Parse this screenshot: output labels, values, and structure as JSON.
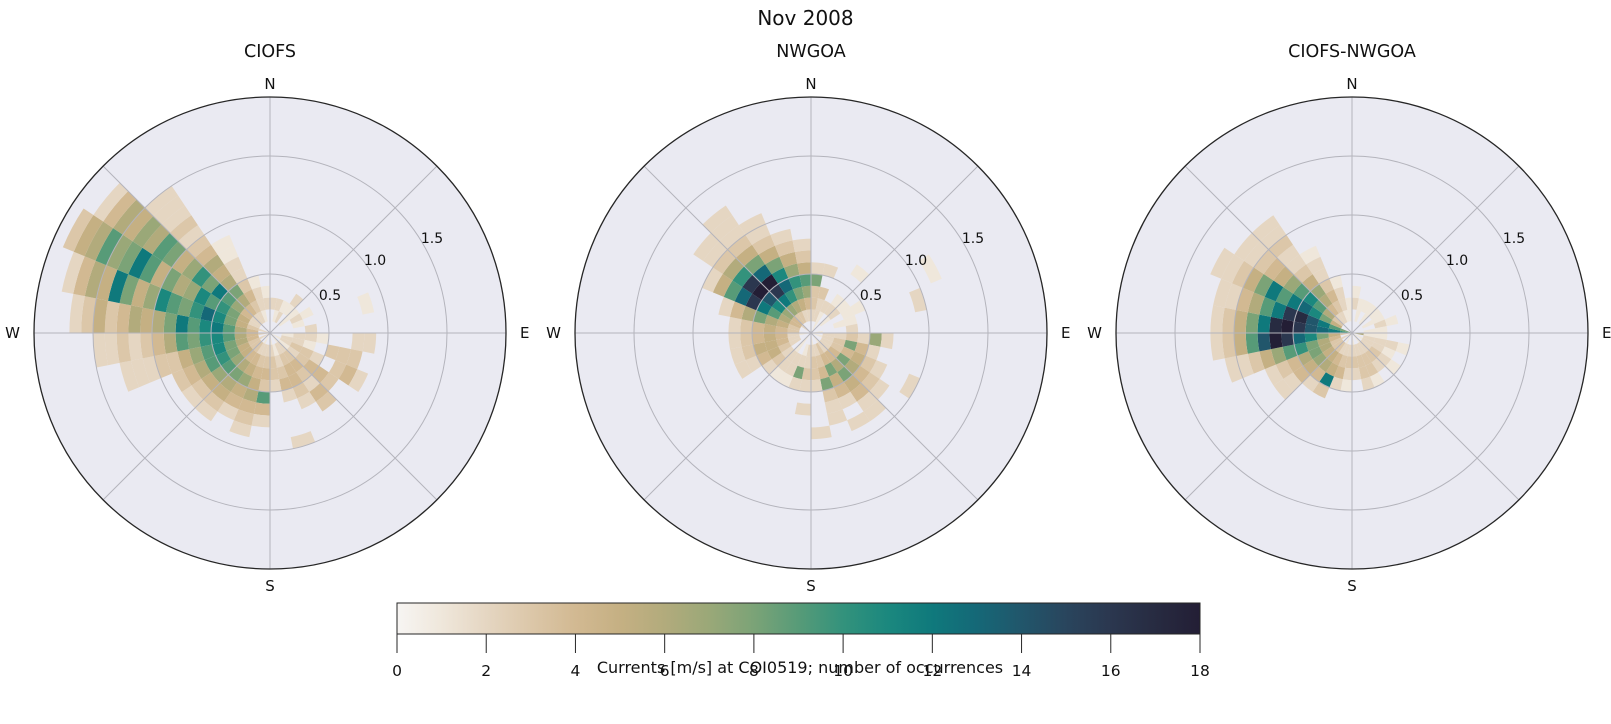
{
  "figure": {
    "title": "Nov 2008"
  },
  "compass_labels": {
    "n": "N",
    "e": "E",
    "s": "S",
    "w": "W"
  },
  "radial_tick_labels": [
    "0.5",
    "1.0",
    "1.5"
  ],
  "colorbar": {
    "label": "Currents [m/s] at COI0519; number of occurrences",
    "min": 0,
    "max": 18,
    "ticks": [
      0,
      2,
      4,
      6,
      8,
      10,
      12,
      14,
      16,
      18
    ],
    "palette": [
      "#f7f5f3",
      "#efe7db",
      "#e5d6c2",
      "#dcc7a9",
      "#d2b992",
      "#c5b083",
      "#b2ab7c",
      "#9aa878",
      "#7ba377",
      "#579b78",
      "#33927c",
      "#1b887e",
      "#0f797c",
      "#156877",
      "#21566b",
      "#29455d",
      "#2b374f",
      "#272b41",
      "#231e35"
    ]
  },
  "style": {
    "axes_background": "#eaeaf2",
    "grid_color": "#b4b4bc",
    "outer_circle_color": "#262626",
    "text_color": "#111111"
  },
  "chart_data": [
    {
      "type": "heatmap",
      "title": "CIOFS",
      "projection": "polar",
      "angle_start": "N",
      "angle_direction": "clockwise",
      "angle_bin_deg": 11.25,
      "r_bin": 0.1,
      "r_max": 2.0,
      "r_ticks": [
        0.5,
        1.0,
        1.5
      ],
      "value_label": "number of occurrences",
      "cells_format": "[angle_bin_index_from_N_clockwise, start_radius_bin, [values per 0.1 radius bin]]",
      "cells": [
        [
          0,
          2,
          [
            2
          ]
        ],
        [
          1,
          1,
          [
            1,
            2
          ]
        ],
        [
          2,
          1,
          [
            2,
            1
          ]
        ],
        [
          3,
          2,
          [
            1,
            2
          ]
        ],
        [
          4,
          1,
          [
            1,
            1
          ]
        ],
        [
          5,
          2,
          [
            2,
            1
          ]
        ],
        [
          6,
          2,
          [
            1
          ]
        ],
        [
          6,
          8,
          [
            1
          ]
        ],
        [
          7,
          3,
          [
            2
          ]
        ],
        [
          8,
          1,
          [
            1,
            2,
            2,
            1
          ]
        ],
        [
          8,
          7,
          [
            2,
            2
          ]
        ],
        [
          9,
          1,
          [
            2,
            2,
            1
          ]
        ],
        [
          9,
          5,
          [
            3,
            3,
            3
          ]
        ],
        [
          10,
          0,
          [
            1,
            2,
            3,
            3,
            2
          ]
        ],
        [
          10,
          6,
          [
            3,
            4,
            2
          ]
        ],
        [
          11,
          1,
          [
            1,
            2,
            3,
            4,
            4,
            3
          ]
        ],
        [
          12,
          0,
          [
            1,
            2,
            3,
            4,
            3,
            2,
            4,
            3
          ]
        ],
        [
          13,
          1,
          [
            2,
            3,
            4,
            4,
            3,
            2
          ]
        ],
        [
          14,
          1,
          [
            1,
            2,
            3,
            4,
            2
          ]
        ],
        [
          14,
          9,
          [
            2
          ]
        ],
        [
          15,
          0,
          [
            1,
            2,
            3,
            3,
            2
          ]
        ],
        [
          16,
          1,
          [
            2,
            3,
            4,
            3,
            9,
            4,
            2
          ]
        ],
        [
          17,
          1,
          [
            2,
            3,
            4,
            5,
            6,
            4,
            3,
            2
          ]
        ],
        [
          18,
          0,
          [
            1,
            2,
            4,
            5,
            7,
            5,
            4,
            2
          ]
        ],
        [
          19,
          1,
          [
            3,
            4,
            6,
            8,
            6,
            5,
            3,
            2
          ]
        ],
        [
          20,
          1,
          [
            3,
            5,
            7,
            9,
            7,
            5,
            3,
            2
          ]
        ],
        [
          21,
          0,
          [
            2,
            3,
            5,
            8,
            10,
            9,
            6,
            4,
            3
          ]
        ],
        [
          22,
          1,
          [
            4,
            6,
            8,
            11,
            9,
            7,
            5,
            3,
            3,
            2,
            2,
            2
          ]
        ],
        [
          23,
          0,
          [
            2,
            4,
            6,
            9,
            11,
            10,
            8,
            9,
            6,
            4,
            3,
            2,
            3,
            2,
            2
          ]
        ],
        [
          24,
          1,
          [
            4,
            6,
            9,
            12,
            11,
            9,
            12,
            8,
            6,
            5,
            6,
            4,
            3,
            5,
            3,
            2
          ]
        ],
        [
          25,
          0,
          [
            2,
            3,
            5,
            8,
            11,
            13,
            10,
            8,
            9,
            11,
            7,
            5,
            8,
            12,
            5,
            6,
            4,
            2
          ]
        ],
        [
          26,
          1,
          [
            2,
            5,
            8,
            10,
            9,
            11,
            7,
            6,
            8,
            5,
            9,
            12,
            8,
            7,
            9,
            6,
            5,
            3
          ]
        ],
        [
          27,
          1,
          [
            2,
            4,
            7,
            9,
            12,
            8,
            10,
            7,
            5,
            8,
            9,
            6,
            7,
            5,
            6,
            4,
            2
          ]
        ],
        [
          28,
          1,
          [
            2,
            4,
            6,
            8,
            6,
            5,
            6,
            4,
            3,
            2,
            3,
            2,
            2,
            2
          ]
        ],
        [
          29,
          1,
          [
            2,
            3,
            4,
            3,
            2,
            2,
            1,
            1
          ]
        ],
        [
          30,
          1,
          [
            1,
            2,
            2,
            1
          ]
        ],
        [
          31,
          2,
          [
            2,
            1
          ]
        ]
      ]
    },
    {
      "type": "heatmap",
      "title": "NWGOA",
      "projection": "polar",
      "angle_start": "N",
      "angle_direction": "clockwise",
      "angle_bin_deg": 11.25,
      "r_bin": 0.1,
      "r_max": 2.0,
      "r_ticks": [
        0.5,
        1.0,
        1.5
      ],
      "value_label": "number of occurrences",
      "cells_format": "[angle_bin_index_from_N_clockwise, start_radius_bin, [values per 0.1 radius bin]]",
      "cells": [
        [
          0,
          1,
          [
            2,
            3,
            3,
            8,
            2
          ]
        ],
        [
          1,
          1,
          [
            2,
            2,
            3
          ]
        ],
        [
          1,
          5,
          [
            2
          ]
        ],
        [
          2,
          0,
          [
            1,
            1,
            2
          ]
        ],
        [
          3,
          2,
          [
            2,
            1
          ]
        ],
        [
          3,
          6,
          [
            1
          ]
        ],
        [
          4,
          1,
          [
            1,
            2,
            1
          ]
        ],
        [
          5,
          3,
          [
            1,
            1
          ]
        ],
        [
          5,
          11,
          [
            1
          ]
        ],
        [
          6,
          2,
          [
            1,
            1
          ]
        ],
        [
          6,
          9,
          [
            2
          ]
        ],
        [
          7,
          0,
          [
            1
          ]
        ],
        [
          7,
          3,
          [
            2
          ]
        ],
        [
          8,
          1,
          [
            2,
            2,
            3,
            2,
            7,
            2
          ]
        ],
        [
          9,
          0,
          [
            1,
            2,
            3,
            8,
            4,
            2
          ]
        ],
        [
          10,
          1,
          [
            2,
            3,
            4,
            5,
            3,
            2
          ]
        ],
        [
          10,
          9,
          [
            2
          ]
        ],
        [
          11,
          1,
          [
            2,
            4,
            8,
            6,
            4,
            3,
            2
          ]
        ],
        [
          12,
          0,
          [
            1,
            2,
            4,
            6,
            8,
            5,
            4,
            2,
            2
          ]
        ],
        [
          13,
          1,
          [
            3,
            4,
            8,
            5,
            4,
            2
          ]
        ],
        [
          13,
          8,
          [
            2
          ]
        ],
        [
          14,
          1,
          [
            2,
            3,
            4,
            8,
            3,
            2,
            2
          ]
        ],
        [
          15,
          0,
          [
            1,
            2,
            3,
            3,
            2
          ]
        ],
        [
          15,
          8,
          [
            2
          ]
        ],
        [
          16,
          1,
          [
            2,
            2,
            3,
            2
          ]
        ],
        [
          16,
          6,
          [
            2
          ]
        ],
        [
          17,
          1,
          [
            1,
            2,
            8,
            2
          ]
        ],
        [
          18,
          2,
          [
            2,
            2,
            1
          ]
        ],
        [
          19,
          0,
          [
            1,
            1,
            2,
            2,
            1
          ]
        ],
        [
          20,
          2,
          [
            2,
            3,
            2
          ]
        ],
        [
          21,
          1,
          [
            2,
            3,
            5,
            4,
            2,
            2
          ]
        ],
        [
          22,
          1,
          [
            2,
            4,
            5,
            5,
            3,
            2
          ]
        ],
        [
          23,
          0,
          [
            1,
            2,
            4,
            5,
            4,
            3,
            2
          ]
        ],
        [
          24,
          1,
          [
            3,
            4,
            5,
            4,
            3,
            2
          ]
        ],
        [
          25,
          1,
          [
            3,
            5,
            6,
            8,
            6,
            4,
            2
          ]
        ],
        [
          26,
          1,
          [
            4,
            6,
            9,
            12,
            16,
            13,
            9,
            5,
            2
          ]
        ],
        [
          27,
          0,
          [
            2,
            4,
            7,
            11,
            14,
            18,
            16,
            10,
            6,
            3,
            2,
            2
          ]
        ],
        [
          28,
          1,
          [
            3,
            7,
            12,
            16,
            18,
            13,
            8,
            5,
            3,
            2,
            2,
            2
          ]
        ],
        [
          29,
          1,
          [
            3,
            6,
            10,
            13,
            11,
            8,
            5,
            3,
            2,
            2
          ]
        ],
        [
          30,
          1,
          [
            2,
            5,
            8,
            10,
            7,
            5,
            3,
            2
          ]
        ],
        [
          31,
          1,
          [
            2,
            4,
            7,
            9,
            5,
            3,
            2
          ]
        ]
      ]
    },
    {
      "type": "heatmap",
      "title": "CIOFS-NWGOA",
      "projection": "polar",
      "angle_start": "N",
      "angle_direction": "clockwise",
      "angle_bin_deg": 11.25,
      "r_bin": 0.1,
      "r_max": 2.0,
      "r_ticks": [
        0.5,
        1.0,
        1.5
      ],
      "value_label": "number of occurrences",
      "cells_format": "[angle_bin_index_from_N_clockwise, start_radius_bin, [values per 0.1 radius bin]]",
      "cells": [
        [
          0,
          2,
          [
            2,
            1
          ]
        ],
        [
          1,
          1,
          [
            1,
            1
          ]
        ],
        [
          2,
          2,
          [
            1
          ]
        ],
        [
          3,
          1,
          [
            1,
            1
          ]
        ],
        [
          4,
          2,
          [
            1
          ]
        ],
        [
          5,
          1,
          [
            1,
            1
          ]
        ],
        [
          6,
          2,
          [
            2,
            1
          ]
        ],
        [
          7,
          1,
          [
            1,
            1
          ]
        ],
        [
          8,
          0,
          [
            6,
            1,
            1
          ]
        ],
        [
          9,
          1,
          [
            2,
            2,
            2,
            1
          ]
        ],
        [
          10,
          0,
          [
            1,
            2,
            2,
            1
          ]
        ],
        [
          11,
          1,
          [
            2,
            3,
            2,
            1
          ]
        ],
        [
          12,
          0,
          [
            1,
            2,
            3,
            2
          ]
        ],
        [
          13,
          1,
          [
            2,
            3,
            3,
            1
          ]
        ],
        [
          14,
          1,
          [
            2,
            3,
            3,
            2
          ]
        ],
        [
          15,
          0,
          [
            1,
            2,
            3,
            2
          ]
        ],
        [
          16,
          1,
          [
            2,
            3,
            2,
            1
          ]
        ],
        [
          17,
          1,
          [
            2,
            3,
            4,
            2
          ]
        ],
        [
          18,
          0,
          [
            1,
            2,
            4,
            5,
            12,
            3
          ]
        ],
        [
          19,
          1,
          [
            3,
            5,
            6,
            4,
            2
          ]
        ],
        [
          20,
          1,
          [
            3,
            5,
            7,
            5,
            4,
            2,
            2
          ]
        ],
        [
          21,
          0,
          [
            2,
            3,
            6,
            8,
            6,
            4,
            3,
            2
          ]
        ],
        [
          22,
          1,
          [
            4,
            6,
            8,
            10,
            9,
            7,
            5,
            3,
            2,
            2
          ]
        ],
        [
          23,
          0,
          [
            3,
            5,
            8,
            11,
            13,
            16,
            18,
            14,
            9,
            5,
            3,
            2
          ]
        ],
        [
          24,
          0,
          [
            10,
            12,
            13,
            14,
            16,
            18,
            17,
            12,
            8,
            5,
            3,
            2
          ]
        ],
        [
          25,
          0,
          [
            8,
            9,
            12,
            14,
            17,
            16,
            12,
            9,
            6,
            4,
            2,
            2
          ]
        ],
        [
          26,
          1,
          [
            5,
            8,
            11,
            13,
            12,
            9,
            12,
            8,
            5,
            3,
            2,
            2
          ]
        ],
        [
          27,
          1,
          [
            3,
            6,
            9,
            11,
            9,
            7,
            5,
            4,
            3,
            2,
            2
          ]
        ],
        [
          28,
          1,
          [
            2,
            4,
            6,
            7,
            5,
            3,
            2,
            2,
            3,
            2,
            2
          ]
        ],
        [
          29,
          1,
          [
            2,
            3,
            4,
            3,
            2,
            2,
            1
          ]
        ],
        [
          30,
          1,
          [
            1,
            2,
            2,
            1
          ]
        ],
        [
          31,
          1,
          [
            1,
            1
          ]
        ]
      ]
    }
  ]
}
